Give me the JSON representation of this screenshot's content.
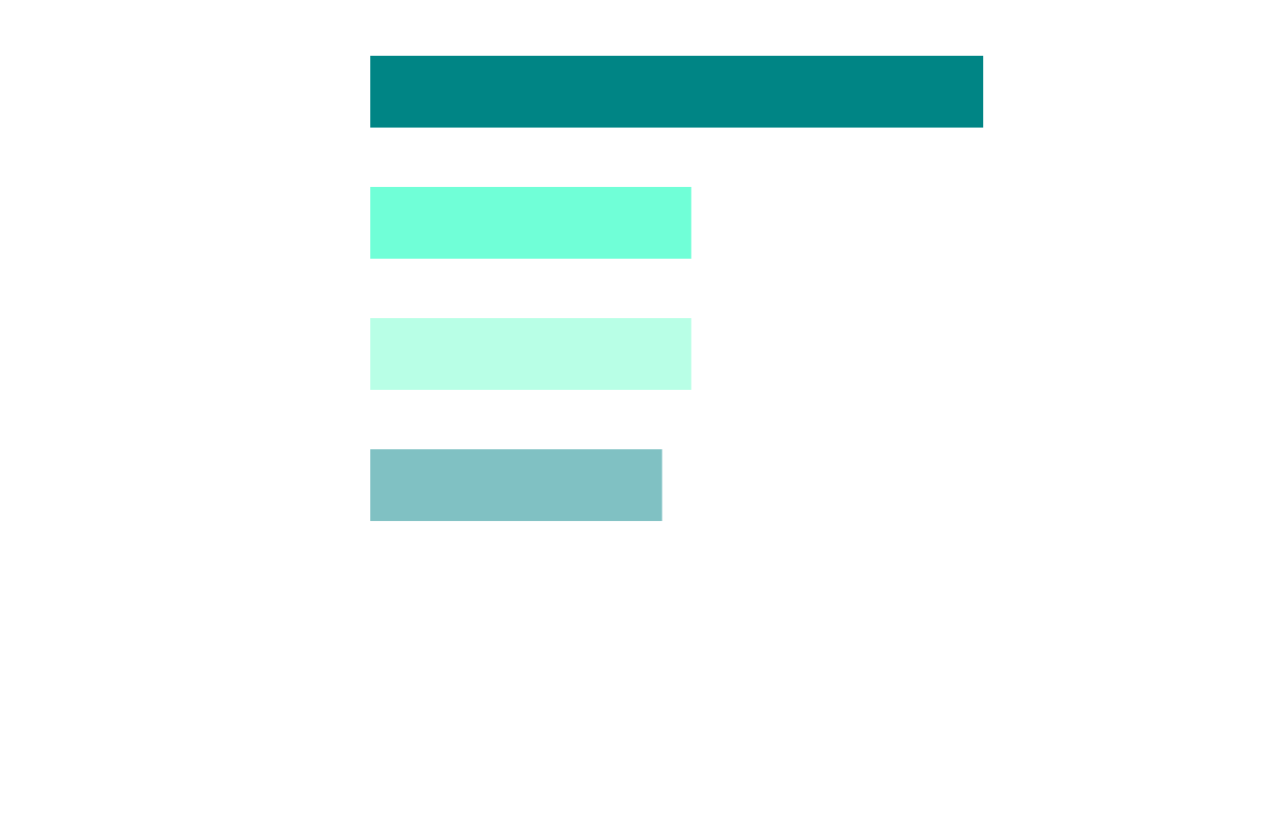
{
  "chart_data": {
    "type": "barh",
    "categories": [
      null,
      null,
      null,
      null
    ],
    "values": [
      21,
      11,
      11,
      10
    ],
    "colors": [
      "#008585",
      "#70ffd7",
      "#b8ffe6",
      "#80c1c3"
    ],
    "xlim": [
      0,
      21
    ]
  }
}
